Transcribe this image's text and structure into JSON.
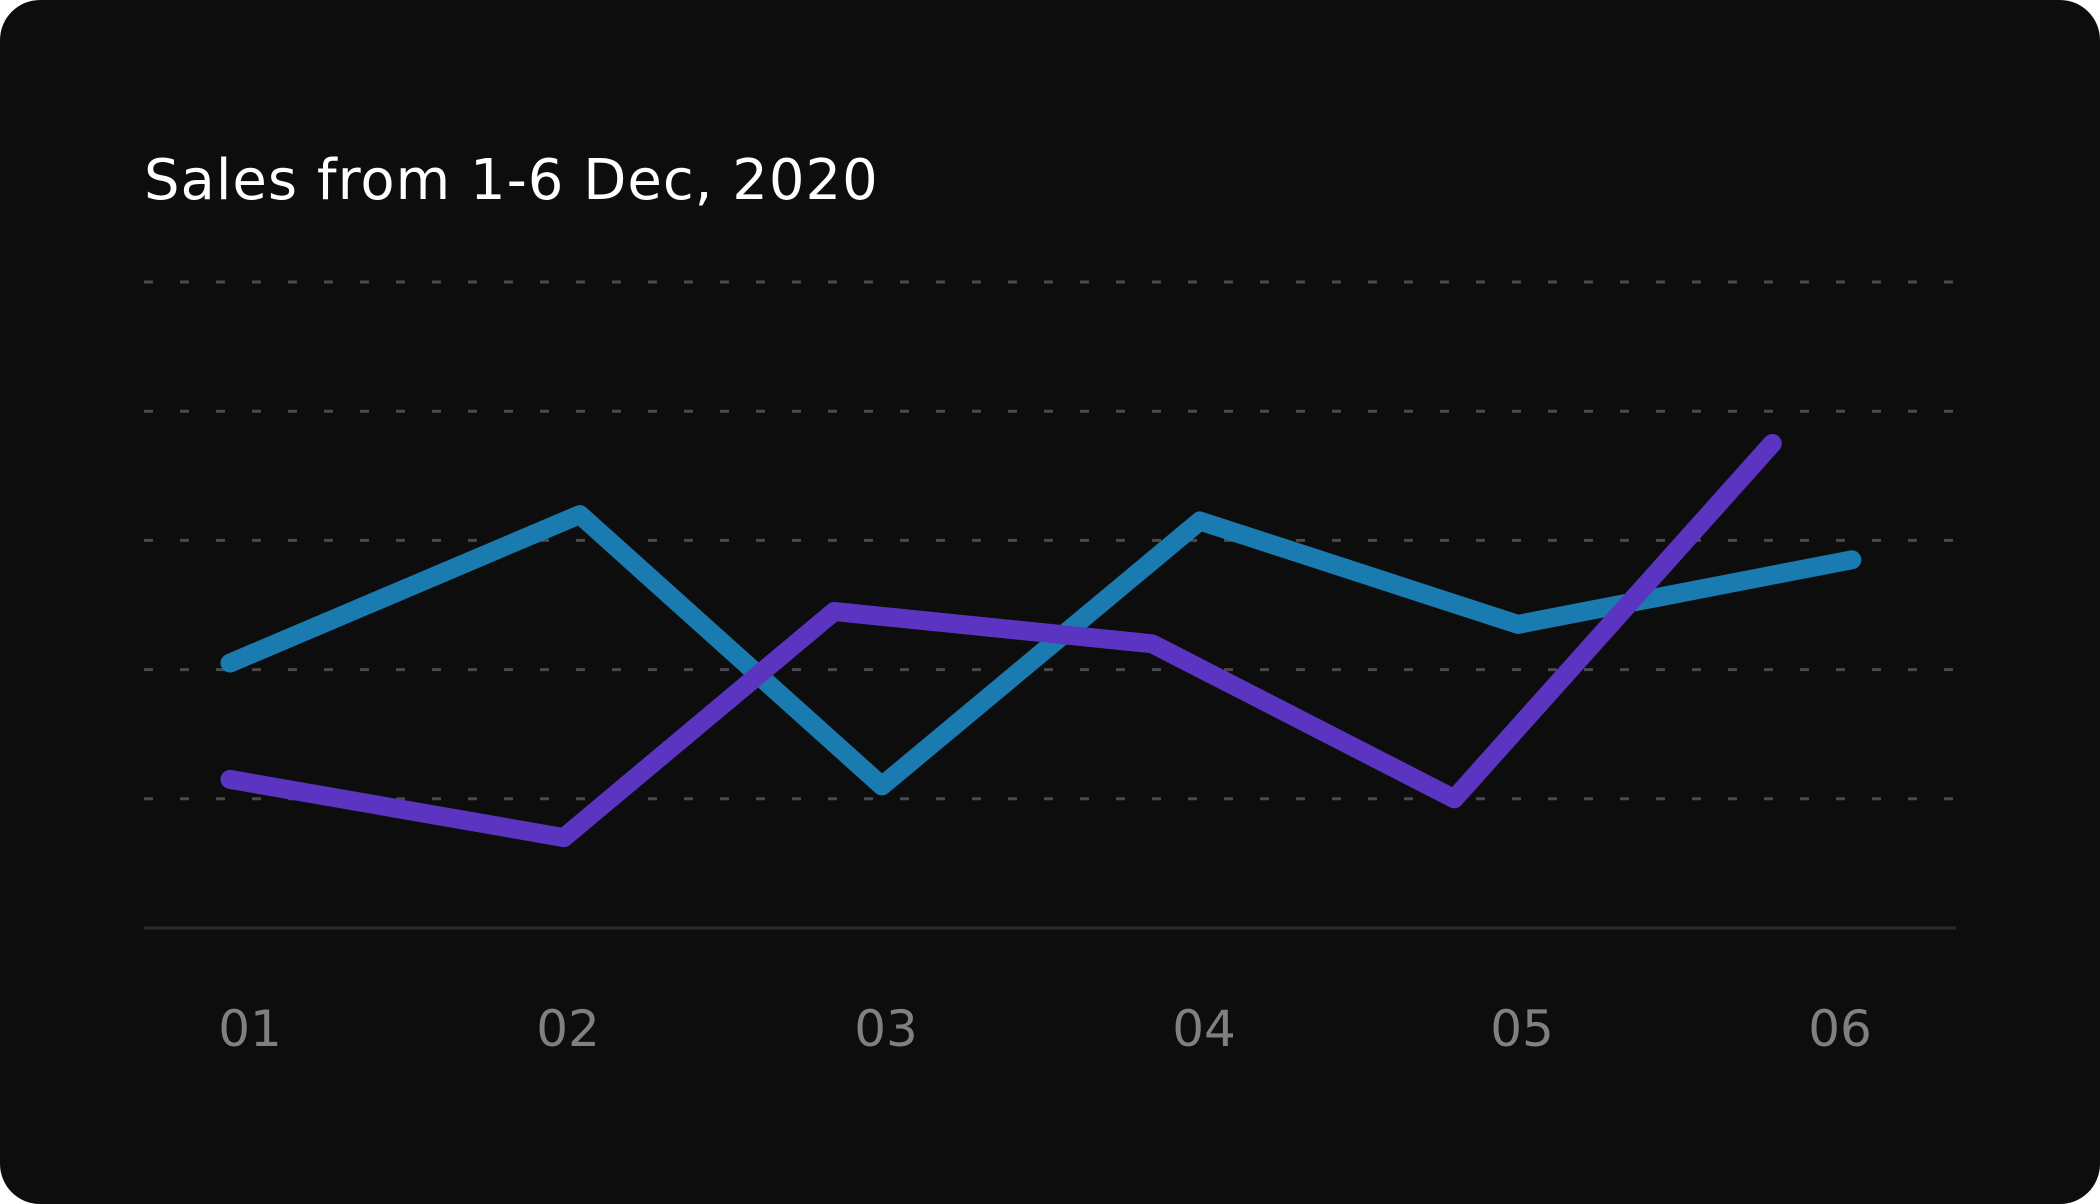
{
  "chart_data": {
    "type": "line",
    "title": "Sales from 1-6 Dec, 2020",
    "categories": [
      "01",
      "02",
      "03",
      "04",
      "05",
      "06"
    ],
    "ylim": [
      0,
      5
    ],
    "grid": true,
    "series": [
      {
        "color": "#1a7bb0",
        "x": [
          1,
          2.1,
          3.05,
          4.05,
          5.05,
          6.1
        ],
        "values": [
          2.05,
          3.2,
          1.1,
          3.15,
          2.35,
          2.85
        ]
      },
      {
        "color": "#5b35c2",
        "x": [
          1,
          2.05,
          2.9,
          3.9,
          4.85,
          5.85
        ],
        "values": [
          1.15,
          0.7,
          2.45,
          2.2,
          1.0,
          3.75
        ]
      }
    ]
  }
}
